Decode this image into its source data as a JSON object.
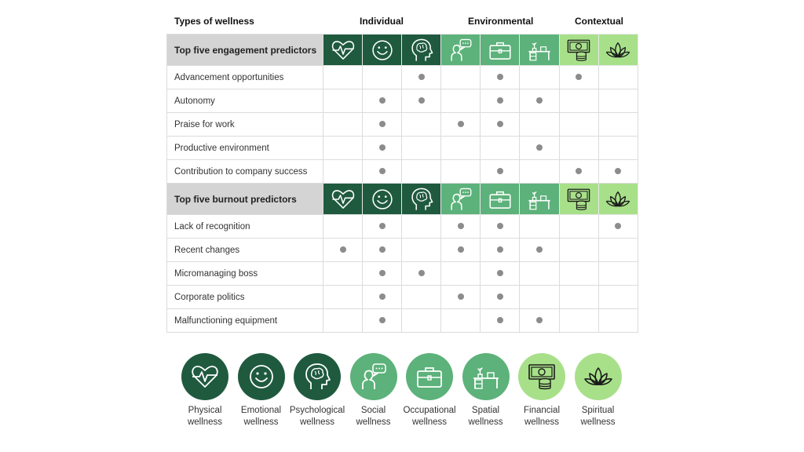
{
  "header": {
    "title": "Types of wellness",
    "groups": [
      "Individual",
      "Environmental",
      "Contextual"
    ]
  },
  "colors": {
    "dark_green": "#1f5a3f",
    "mid_green": "#5cb27a",
    "light_green": "#a8e08a",
    "dot": "#8c8c8c",
    "section_bg": "#d4d4d4"
  },
  "wellness_types": [
    {
      "icon": "heartbeat-icon",
      "label_line1": "Physical",
      "label_line2": "wellness",
      "tone": "dark"
    },
    {
      "icon": "smiley-icon",
      "label_line1": "Emotional",
      "label_line2": "wellness",
      "tone": "dark"
    },
    {
      "icon": "brain-head-icon",
      "label_line1": "Psychological",
      "label_line2": "wellness",
      "tone": "dark"
    },
    {
      "icon": "person-speech-icon",
      "label_line1": "Social",
      "label_line2": "wellness",
      "tone": "mid"
    },
    {
      "icon": "briefcase-icon",
      "label_line1": "Occupational",
      "label_line2": "wellness",
      "tone": "mid"
    },
    {
      "icon": "desk-plant-icon",
      "label_line1": "Spatial",
      "label_line2": "wellness",
      "tone": "mid"
    },
    {
      "icon": "money-coins-icon",
      "label_line1": "Financial",
      "label_line2": "wellness",
      "tone": "light"
    },
    {
      "icon": "lotus-icon",
      "label_line1": "Spiritual",
      "label_line2": "wellness",
      "tone": "light"
    }
  ],
  "sections": [
    {
      "title": "Top five engagement predictors",
      "rows": [
        {
          "label": "Advancement opportunities",
          "marks": [
            0,
            0,
            1,
            0,
            1,
            0,
            1,
            0
          ]
        },
        {
          "label": "Autonomy",
          "marks": [
            0,
            1,
            1,
            0,
            1,
            1,
            0,
            0
          ]
        },
        {
          "label": "Praise for work",
          "marks": [
            0,
            1,
            0,
            1,
            1,
            0,
            0,
            0
          ]
        },
        {
          "label": "Productive environment",
          "marks": [
            0,
            1,
            0,
            0,
            0,
            1,
            0,
            0
          ]
        },
        {
          "label": "Contribution to company success",
          "marks": [
            0,
            1,
            0,
            0,
            1,
            0,
            1,
            1
          ]
        }
      ]
    },
    {
      "title": "Top five burnout predictors",
      "rows": [
        {
          "label": "Lack of recognition",
          "marks": [
            0,
            1,
            0,
            1,
            1,
            0,
            0,
            1
          ]
        },
        {
          "label": "Recent changes",
          "marks": [
            1,
            1,
            0,
            1,
            1,
            1,
            0,
            0
          ]
        },
        {
          "label": "Micromanaging boss",
          "marks": [
            0,
            1,
            1,
            0,
            1,
            0,
            0,
            0
          ]
        },
        {
          "label": "Corporate politics",
          "marks": [
            0,
            1,
            0,
            1,
            1,
            0,
            0,
            0
          ]
        },
        {
          "label": "Malfunctioning equipment",
          "marks": [
            0,
            1,
            0,
            0,
            1,
            1,
            0,
            0
          ]
        }
      ]
    }
  ]
}
